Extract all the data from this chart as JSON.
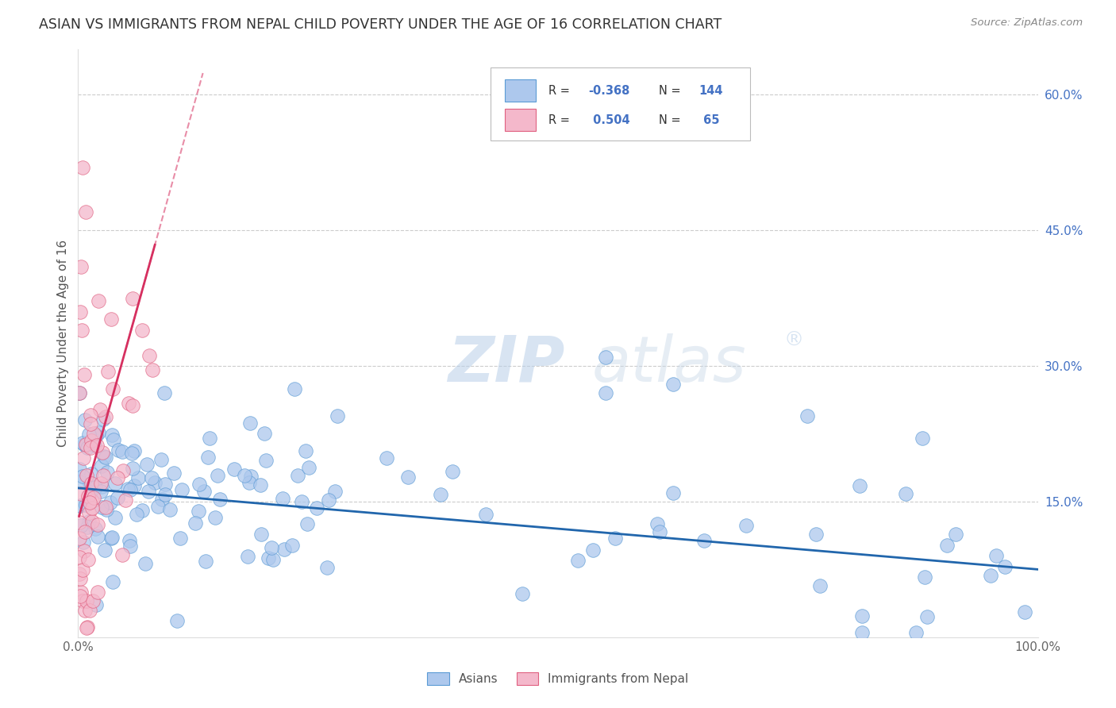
{
  "title": "ASIAN VS IMMIGRANTS FROM NEPAL CHILD POVERTY UNDER THE AGE OF 16 CORRELATION CHART",
  "source": "Source: ZipAtlas.com",
  "ylabel": "Child Poverty Under the Age of 16",
  "xlim": [
    0,
    1.0
  ],
  "ylim": [
    0,
    0.65
  ],
  "asian_R": -0.368,
  "asian_N": 144,
  "nepal_R": 0.504,
  "nepal_N": 65,
  "asian_color": "#adc8ed",
  "asian_edge_color": "#5b9bd5",
  "asian_line_color": "#2166ac",
  "nepal_color": "#f4b8cb",
  "nepal_edge_color": "#e06080",
  "nepal_line_color": "#d63060",
  "watermark_color": "#d0dff0",
  "background_color": "#ffffff",
  "grid_color": "#cccccc",
  "title_color": "#333333",
  "source_color": "#888888",
  "tick_color_right": "#4472c4",
  "yticks_right": [
    0.15,
    0.3,
    0.45,
    0.6
  ],
  "ytick_labels_right": [
    "15.0%",
    "30.0%",
    "45.0%",
    "60.0%"
  ]
}
